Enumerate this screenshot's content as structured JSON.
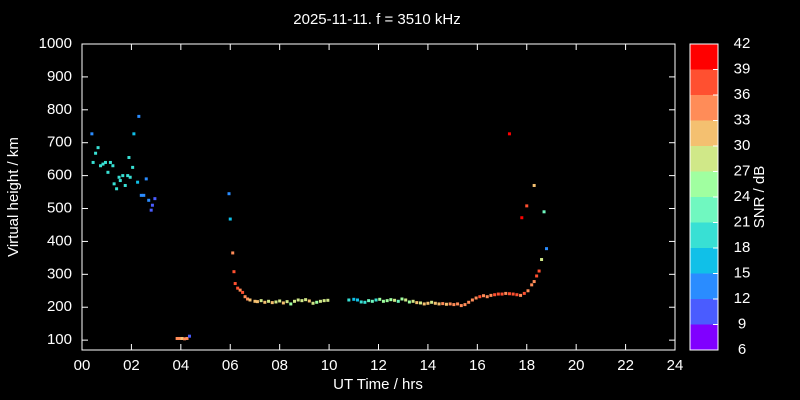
{
  "chart_data": {
    "type": "scatter",
    "title": "2025-11-11. f = 3510 kHz",
    "x_label": "UT Time / hrs",
    "y_label": "Virtual height / km",
    "colorbar_label": "SNR / dB",
    "xlim": [
      0,
      24
    ],
    "xticks": [
      {
        "value": 0,
        "label": "00"
      },
      {
        "value": 2,
        "label": "02"
      },
      {
        "value": 4,
        "label": "04"
      },
      {
        "value": 6,
        "label": "06"
      },
      {
        "value": 8,
        "label": "08"
      },
      10,
      12,
      14,
      16,
      18,
      20,
      22,
      24
    ],
    "ylim": [
      70,
      1000
    ],
    "yticks": [
      100,
      200,
      300,
      400,
      500,
      600,
      700,
      800,
      900,
      1000
    ],
    "colorbar_ticks": [
      6,
      9,
      12,
      15,
      18,
      21,
      24,
      27,
      30,
      33,
      36,
      39,
      42
    ],
    "colorbar_colors": [
      "#8000ff",
      "#4a5cff",
      "#2a8cff",
      "#10c0e8",
      "#38e0d4",
      "#70f8c0",
      "#a0ffa0",
      "#d0e888",
      "#f4c070",
      "#ff8c58",
      "#ff5030",
      "#ff0000"
    ],
    "x": [
      0.4,
      0.45,
      0.55,
      0.65,
      0.75,
      0.85,
      0.95,
      1.05,
      1.15,
      1.25,
      1.3,
      1.4,
      1.5,
      1.55,
      1.65,
      1.75,
      1.85,
      1.9,
      1.95,
      2.05,
      2.1,
      2.25,
      2.3,
      2.4,
      2.5,
      2.6,
      2.7,
      2.8,
      2.85,
      2.95,
      3.85,
      3.95,
      4.05,
      4.15,
      4.25,
      4.35,
      5.95,
      6.0,
      6.1,
      6.15,
      6.2,
      6.3,
      6.4,
      6.5,
      6.6,
      6.7,
      6.8,
      7.0,
      7.1,
      7.25,
      7.4,
      7.55,
      7.7,
      7.85,
      8.0,
      8.15,
      8.3,
      8.45,
      8.6,
      8.75,
      8.9,
      9.05,
      9.2,
      9.35,
      9.5,
      9.65,
      9.8,
      9.95,
      10.8,
      11.0,
      11.15,
      11.3,
      11.45,
      11.6,
      11.75,
      11.9,
      12.05,
      12.2,
      12.35,
      12.5,
      12.65,
      12.8,
      12.95,
      13.1,
      13.25,
      13.4,
      13.55,
      13.7,
      13.85,
      14.0,
      14.15,
      14.3,
      14.45,
      14.6,
      14.75,
      14.9,
      15.05,
      15.2,
      15.35,
      15.5,
      15.65,
      15.8,
      15.95,
      16.1,
      16.25,
      16.4,
      16.55,
      16.7,
      16.85,
      17.0,
      17.15,
      17.3,
      17.45,
      17.6,
      17.75,
      17.9,
      18.05,
      18.2,
      18.3,
      18.4,
      17.3,
      17.8,
      18.0,
      18.3,
      18.5,
      18.6,
      18.7,
      18.8
    ],
    "y": [
      727,
      640,
      668,
      685,
      630,
      635,
      640,
      610,
      640,
      630,
      575,
      560,
      595,
      585,
      600,
      570,
      600,
      655,
      595,
      625,
      727,
      580,
      780,
      540,
      540,
      590,
      525,
      495,
      510,
      530,
      105,
      105,
      105,
      104,
      105,
      112,
      545,
      468,
      365,
      308,
      272,
      258,
      252,
      245,
      232,
      225,
      222,
      218,
      217,
      220,
      215,
      218,
      214,
      216,
      219,
      213,
      217,
      210,
      218,
      222,
      220,
      223,
      219,
      212,
      215,
      218,
      220,
      221,
      222,
      224,
      222,
      216,
      215,
      220,
      218,
      222,
      224,
      218,
      220,
      223,
      221,
      218,
      225,
      222,
      216,
      218,
      214,
      213,
      210,
      212,
      215,
      212,
      210,
      211,
      209,
      210,
      208,
      210,
      205,
      208,
      215,
      222,
      228,
      232,
      235,
      232,
      236,
      238,
      240,
      240,
      242,
      241,
      240,
      238,
      236,
      242,
      250,
      268,
      278,
      295,
      727,
      472,
      508,
      570,
      310,
      345,
      490,
      378
    ],
    "snr": [
      14,
      18,
      18,
      18,
      20,
      20,
      19,
      20,
      19,
      19,
      19,
      19,
      19,
      19,
      20,
      19,
      20,
      19,
      18,
      18,
      16,
      16,
      14,
      14,
      13,
      13,
      12,
      11,
      11,
      11,
      33,
      34,
      32,
      33,
      35,
      9,
      13,
      16,
      35,
      36,
      37,
      36,
      35,
      36,
      34,
      33,
      32,
      31,
      30,
      29,
      31,
      28,
      30,
      29,
      27,
      30,
      28,
      26,
      27,
      29,
      27,
      28,
      30,
      27,
      26,
      28,
      29,
      29,
      19,
      16,
      17,
      18,
      20,
      21,
      22,
      20,
      25,
      26,
      24,
      26,
      28,
      23,
      26,
      28,
      24,
      29,
      30,
      28,
      30,
      31,
      29,
      31,
      30,
      33,
      32,
      34,
      33,
      34,
      35,
      33,
      34,
      33,
      34,
      36,
      35,
      34,
      35,
      36,
      37,
      36,
      35,
      36,
      37,
      36,
      34,
      36,
      35,
      34,
      33,
      38,
      40,
      40,
      37,
      32,
      38,
      29,
      21,
      12
    ]
  }
}
